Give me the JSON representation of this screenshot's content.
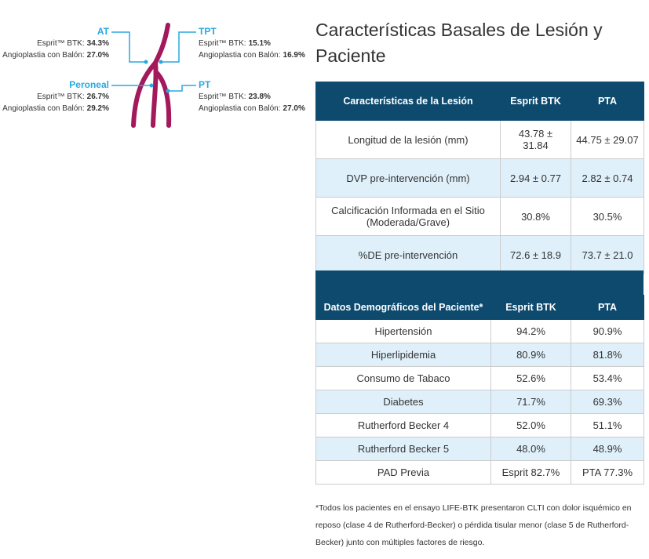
{
  "diagram": {
    "labels": [
      {
        "name": "AT",
        "lines": [
          {
            "text": "Esprit™ BTK:",
            "value": "34.3%"
          },
          {
            "text": "Angioplastia con Balón:",
            "value": "27.0%"
          }
        ]
      },
      {
        "name": "TPT",
        "lines": [
          {
            "text": "Esprit™ BTK:",
            "value": "15.1%"
          },
          {
            "text": "Angioplastia con Balón:",
            "value": "16.9%"
          }
        ]
      },
      {
        "name": "Peroneal",
        "lines": [
          {
            "text": "Esprit™ BTK:",
            "value": "26.7%"
          },
          {
            "text": "Angioplastia con Balón:",
            "value": "29.2%"
          }
        ]
      },
      {
        "name": "PT",
        "lines": [
          {
            "text": "Esprit™ BTK:",
            "value": "23.8%"
          },
          {
            "text": "Angioplastia con Balón:",
            "value": "27.0%"
          }
        ]
      }
    ]
  },
  "title": "Características Basales de Lesión y Paciente",
  "lesion_table": {
    "header": [
      "Características de la Lesión",
      "Esprit BTK",
      "PTA"
    ],
    "rows": [
      [
        "Longitud de la lesión (mm)",
        "43.78 ± 31.84",
        "44.75 ± 29.07"
      ],
      [
        "DVP pre-intervención (mm)",
        "2.94 ± 0.77",
        "2.82 ± 0.74"
      ],
      [
        "Calcificación Informada en el Sitio (Moderada/Grave)",
        "30.8%",
        "30.5%"
      ],
      [
        "%DE pre-intervención",
        "72.6 ± 18.9",
        "73.7 ± 21.0"
      ]
    ]
  },
  "patient_table": {
    "header": [
      "Datos Demográficos del Paciente*",
      "Esprit BTK",
      "PTA"
    ],
    "rows": [
      [
        "Hipertensión",
        "94.2%",
        "90.9%"
      ],
      [
        "Hiperlipidemia",
        "80.9%",
        "81.8%"
      ],
      [
        "Consumo de Tabaco",
        "52.6%",
        "53.4%"
      ],
      [
        "Diabetes",
        "71.7%",
        "69.3%"
      ],
      [
        "Rutherford Becker 4",
        "52.0%",
        "51.1%"
      ],
      [
        "Rutherford Becker 5",
        "48.0%",
        "48.9%"
      ],
      [
        "PAD Previa",
        "Esprit 82.7%",
        "PTA 77.3%"
      ]
    ]
  },
  "footnote": "*Todos los pacientes en el ensayo LIFE-BTK presentaron CLTI con dolor isquémico en reposo (clase 4 de Rutherford-Becker) o pérdida tisular menor (clase 5 de Rutherford-Becker) junto con múltiples factores de riesgo."
}
